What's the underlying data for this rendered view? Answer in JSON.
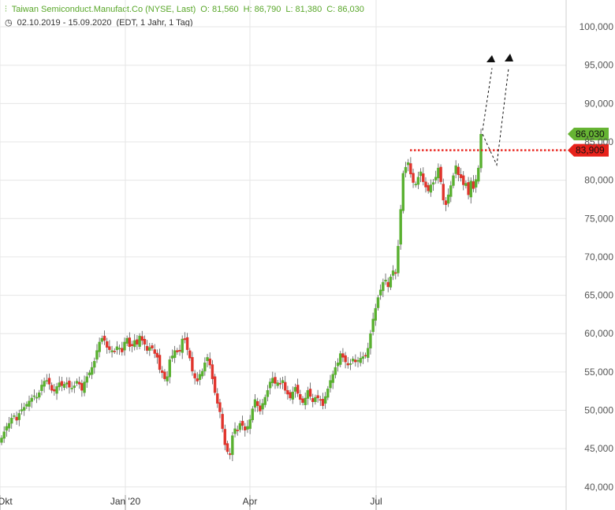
{
  "header": {
    "title": "Taiwan Semiconduct.Manufact.Co (NYSE, Last)",
    "open": "O: 81,560",
    "high": "H: 86,790",
    "low": "L: 81,380",
    "close": "C: 86,030",
    "date_range": "02.10.2019 - 15.09.2020",
    "interval": "(EDT, 1 Jahr, 1 Tag)"
  },
  "colors": {
    "up": "#59b030",
    "down": "#e0342c",
    "grid": "#e6e6e6",
    "resistance": "#e8221b",
    "price_tag": "#66b433",
    "level_tag": "#e8221b"
  },
  "chart_data": {
    "type": "candlestick",
    "ylim": [
      37000,
      103500
    ],
    "y_ticks": [
      "100,000",
      "95,000",
      "90,000",
      "85,000",
      "80,000",
      "75,000",
      "70,000",
      "65,000",
      "60,000",
      "55,000",
      "50,000",
      "45,000",
      "40,000"
    ],
    "x_ticks": [
      "Okt",
      "Jan '20",
      "Apr",
      "Jul"
    ],
    "last_price": "86,030",
    "resistance_level": "83,909",
    "resistance_value": 83909,
    "annotations": [
      "dashed arrows indicating expected rise toward ~95,000"
    ],
    "series_close": [
      46.4,
      47.2,
      47.9,
      48.3,
      49.0,
      49.3,
      48.7,
      49.6,
      50.1,
      50.4,
      50.8,
      51.2,
      51.6,
      51.9,
      51.7,
      52.3,
      53.3,
      53.8,
      53.9,
      53.4,
      52.6,
      52.5,
      53.1,
      53.6,
      53.2,
      53.4,
      53.6,
      53.0,
      52.9,
      53.2,
      53.8,
      53.4,
      52.6,
      53.7,
      54.4,
      54.9,
      55.6,
      56.4,
      57.8,
      58.9,
      59.4,
      59.1,
      58.2,
      57.9,
      57.8,
      57.7,
      58.3,
      58.1,
      57.6,
      58.9,
      59.4,
      58.3,
      58.4,
      59.1,
      58.6,
      59.7,
      59.1,
      58.6,
      57.8,
      58.2,
      58.1,
      57.4,
      56.9,
      55.3,
      54.9,
      54.1,
      54.4,
      56.6,
      57.1,
      57.8,
      57.6,
      57.7,
      59.3,
      59.2,
      57.9,
      56.8,
      55.1,
      54.2,
      53.8,
      54.7,
      55.1,
      56.2,
      56.9,
      55.9,
      54.1,
      52.3,
      50.9,
      49.8,
      47.6,
      45.5,
      44.6,
      44.2,
      46.7,
      47.6,
      47.4,
      48.3,
      48.0,
      47.4,
      47.9,
      48.8,
      50.2,
      51.4,
      50.6,
      49.9,
      50.9,
      51.7,
      52.6,
      53.7,
      54.2,
      53.5,
      53.6,
      53.4,
      53.9,
      52.6,
      52.1,
      51.6,
      52.4,
      53.0,
      52.2,
      51.4,
      51.0,
      51.6,
      52.6,
      51.8,
      51.1,
      51.7,
      51.6,
      51.4,
      50.6,
      51.8,
      52.8,
      53.9,
      54.7,
      55.6,
      56.2,
      57.4,
      56.9,
      56.3,
      55.9,
      56.1,
      56.7,
      56.3,
      56.5,
      56.8,
      57.0,
      57.1,
      58.1,
      60.0,
      61.9,
      63.3,
      64.7,
      65.7,
      66.7,
      67.0,
      66.1,
      67.4,
      68.2,
      67.9,
      71.4,
      76.2,
      80.9,
      81.7,
      82.3,
      80.8,
      79.7,
      79.5,
      80.4,
      81.1,
      79.8,
      79.1,
      78.6,
      79.4,
      79.7,
      80.4,
      81.6,
      79.8,
      77.4,
      76.8,
      78.1,
      79.3,
      80.6,
      81.9,
      80.7,
      80.3,
      79.4,
      79.6,
      78.1,
      79.9,
      78.9,
      80.1,
      81.6,
      86.0
    ]
  }
}
